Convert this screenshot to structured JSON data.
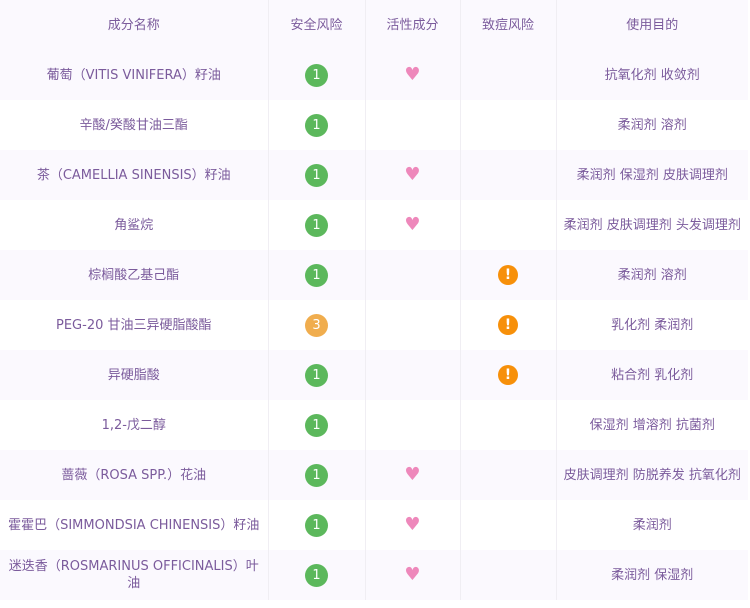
{
  "headers": [
    "成分名称",
    "安全风险",
    "活性成分",
    "致痘风险",
    "使用目的"
  ],
  "colors": {
    "risk_low": "#5cb85c",
    "risk_mid": "#f0ad4e",
    "acne_warn": "#f7900a",
    "active_heart": "#ee88bb",
    "text": "#7b5b9c"
  },
  "rows": [
    {
      "name": "葡萄（VITIS VINIFERA）籽油",
      "risk": "1",
      "active": true,
      "acne": false,
      "purpose": "抗氧化剂 收敛剂"
    },
    {
      "name": "辛酸/癸酸甘油三酯",
      "risk": "1",
      "active": false,
      "acne": false,
      "purpose": "柔润剂 溶剂"
    },
    {
      "name": "茶（CAMELLIA SINENSIS）籽油",
      "risk": "1",
      "active": true,
      "acne": false,
      "purpose": "柔润剂 保湿剂 皮肤调理剂"
    },
    {
      "name": "角鲨烷",
      "risk": "1",
      "active": true,
      "acne": false,
      "purpose": "柔润剂 皮肤调理剂 头发调理剂"
    },
    {
      "name": "棕榈酸乙基己酯",
      "risk": "1",
      "active": false,
      "acne": true,
      "purpose": "柔润剂 溶剂"
    },
    {
      "name": "PEG-20 甘油三异硬脂酸酯",
      "risk": "3",
      "active": false,
      "acne": true,
      "purpose": "乳化剂 柔润剂"
    },
    {
      "name": "异硬脂酸",
      "risk": "1",
      "active": false,
      "acne": true,
      "purpose": "粘合剂 乳化剂"
    },
    {
      "name": "1,2-戊二醇",
      "risk": "1",
      "active": false,
      "acne": false,
      "purpose": "保湿剂 增溶剂 抗菌剂"
    },
    {
      "name": "蔷薇（ROSA SPP.）花油",
      "risk": "1",
      "active": true,
      "acne": false,
      "purpose": "皮肤调理剂 防脱养发 抗氧化剂"
    },
    {
      "name": "霍霍巴（SIMMONDSIA CHINENSIS）籽油",
      "risk": "1",
      "active": true,
      "acne": false,
      "purpose": "柔润剂"
    },
    {
      "name": "迷迭香（ROSMARINUS OFFICINALIS）叶油",
      "risk": "1",
      "active": true,
      "acne": false,
      "purpose": "柔润剂 保湿剂"
    }
  ]
}
